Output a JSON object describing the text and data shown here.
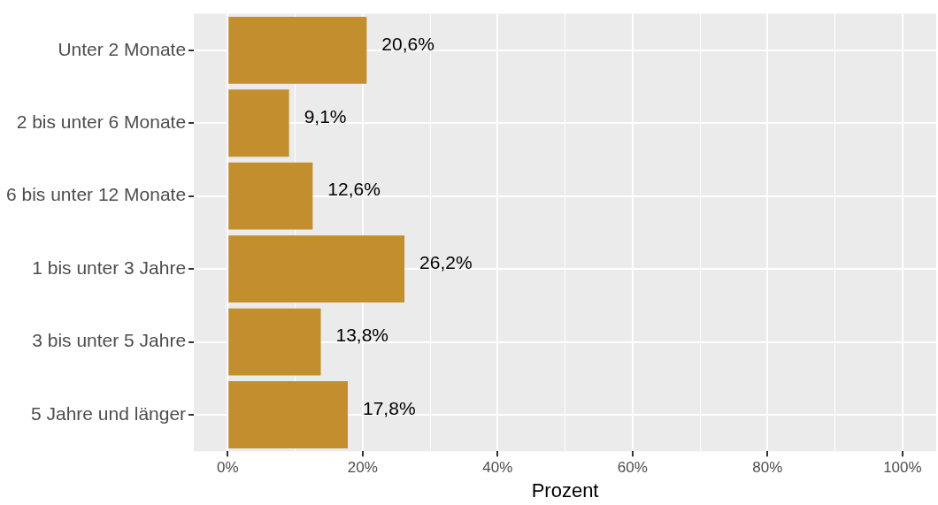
{
  "chart_data": {
    "type": "bar",
    "orientation": "horizontal",
    "xlabel": "Prozent",
    "categories": [
      "Unter 2 Monate",
      "2 bis unter 6 Monate",
      "6 bis unter 12 Monate",
      "1 bis unter 3 Jahre",
      "3 bis unter 5 Jahre",
      "5 Jahre und länger"
    ],
    "values": [
      20.6,
      9.1,
      12.6,
      26.2,
      13.8,
      17.8
    ],
    "value_labels": [
      "20,6%",
      "9,1%",
      "12,6%",
      "26,2%",
      "13,8%",
      "17,8%"
    ],
    "color": "#c28e2e",
    "xlim": [
      -5,
      105
    ],
    "xticks": [
      {
        "value": 0,
        "label": "0%"
      },
      {
        "value": 10,
        "label": null
      },
      {
        "value": 20,
        "label": "20%"
      },
      {
        "value": 30,
        "label": null
      },
      {
        "value": 40,
        "label": "40%"
      },
      {
        "value": 50,
        "label": null
      },
      {
        "value": 60,
        "label": "60%"
      },
      {
        "value": 70,
        "label": null
      },
      {
        "value": 80,
        "label": "80%"
      },
      {
        "value": 90,
        "label": null
      },
      {
        "value": 100,
        "label": "100%"
      }
    ],
    "grid": true,
    "legend": false
  }
}
